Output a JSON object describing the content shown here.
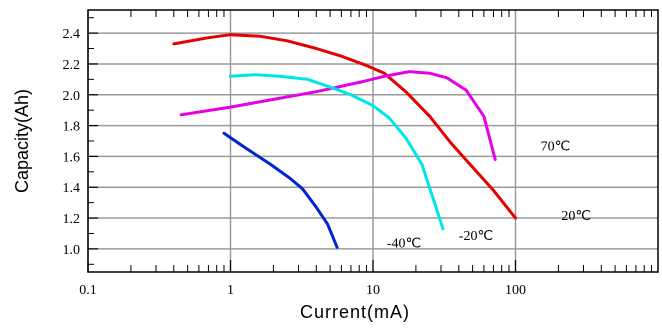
{
  "chart_data": {
    "type": "line",
    "xscale": "log",
    "xlabel": "Current(mA)",
    "ylabel": "Capacity(Ah)",
    "xlim": [
      0.1,
      1000
    ],
    "ylim": [
      0.85,
      2.55
    ],
    "xticks": [
      0.1,
      1,
      10,
      100
    ],
    "xtick_labels": [
      "0.1",
      "1",
      "10",
      "100"
    ],
    "yticks": [
      1.0,
      1.2,
      1.4,
      1.6,
      1.8,
      2.0,
      2.2,
      2.4
    ],
    "ytick_labels": [
      "1.0",
      "1.2",
      "1.4",
      "1.6",
      "1.8",
      "2.0",
      "2.2",
      "2.4"
    ],
    "grid": true,
    "series": [
      {
        "name": "20℃",
        "color": "#e60000",
        "x": [
          0.4,
          0.7,
          1.0,
          1.6,
          2.5,
          4,
          6,
          9,
          12,
          17,
          25,
          35,
          50,
          70,
          100
        ],
        "y": [
          2.33,
          2.37,
          2.39,
          2.38,
          2.35,
          2.3,
          2.25,
          2.19,
          2.14,
          2.02,
          1.86,
          1.69,
          1.53,
          1.38,
          1.2
        ]
      },
      {
        "name": "70℃",
        "color": "#e600e6",
        "x": [
          0.45,
          1.0,
          2.0,
          4.0,
          8.0,
          12,
          18,
          25,
          33,
          45,
          60,
          72
        ],
        "y": [
          1.87,
          1.92,
          1.97,
          2.02,
          2.08,
          2.12,
          2.15,
          2.14,
          2.11,
          2.03,
          1.86,
          1.58
        ]
      },
      {
        "name": "-20℃",
        "color": "#00e6e6",
        "x": [
          1.0,
          1.5,
          2.2,
          3.5,
          5.0,
          7.0,
          10,
          13,
          17,
          22,
          27,
          31
        ],
        "y": [
          2.12,
          2.13,
          2.12,
          2.1,
          2.05,
          2.0,
          1.93,
          1.85,
          1.72,
          1.55,
          1.3,
          1.13
        ]
      },
      {
        "name": "-40℃",
        "color": "#0026cc",
        "x": [
          0.9,
          1.3,
          1.9,
          2.6,
          3.2,
          4.0,
          4.8,
          5.6
        ],
        "y": [
          1.75,
          1.65,
          1.55,
          1.46,
          1.39,
          1.27,
          1.16,
          1.01
        ]
      }
    ],
    "annotations": [
      {
        "text": "70℃",
        "x": 150,
        "y": 1.67
      },
      {
        "text": "20℃",
        "x": 210,
        "y": 1.22
      },
      {
        "text": "-20℃",
        "x": 40,
        "y": 1.09
      },
      {
        "text": "-40℃",
        "x": 12.5,
        "y": 1.04
      }
    ]
  }
}
